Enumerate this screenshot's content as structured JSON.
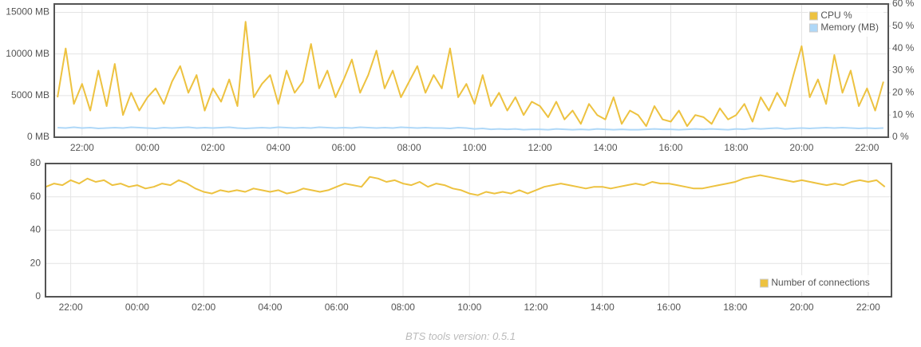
{
  "chart_data": [
    {
      "type": "line",
      "x": [
        21.25,
        21.5,
        21.75,
        22,
        22.25,
        22.5,
        22.75,
        23,
        23.25,
        23.5,
        23.75,
        24,
        24.25,
        24.5,
        24.75,
        25,
        25.25,
        25.5,
        25.75,
        26,
        26.25,
        26.5,
        26.75,
        27,
        27.25,
        27.5,
        27.75,
        28,
        28.25,
        28.5,
        28.75,
        29,
        29.25,
        29.5,
        29.75,
        30,
        30.25,
        30.5,
        30.75,
        31,
        31.25,
        31.5,
        31.75,
        32,
        32.25,
        32.5,
        32.75,
        33,
        33.25,
        33.5,
        33.75,
        34,
        34.25,
        34.5,
        34.75,
        35,
        35.25,
        35.5,
        35.75,
        36,
        36.25,
        36.5,
        36.75,
        37,
        37.25,
        37.5,
        37.75,
        38,
        38.25,
        38.5,
        38.75,
        39,
        39.25,
        39.5,
        39.75,
        40,
        40.25,
        40.5,
        40.75,
        41,
        41.25,
        41.5,
        41.75,
        42,
        42.25,
        42.5,
        42.75,
        43,
        43.25,
        43.5,
        43.75,
        44,
        44.25,
        44.5,
        44.75,
        45,
        45.25,
        45.5,
        45.75,
        46,
        46.25,
        46.5
      ],
      "xlim": [
        21.15,
        46.65
      ],
      "xticks": [
        {
          "value": 22,
          "label": "22:00"
        },
        {
          "value": 24,
          "label": "00:00"
        },
        {
          "value": 26,
          "label": "02:00"
        },
        {
          "value": 28,
          "label": "04:00"
        },
        {
          "value": 30,
          "label": "06:00"
        },
        {
          "value": 32,
          "label": "08:00"
        },
        {
          "value": 34,
          "label": "10:00"
        },
        {
          "value": 36,
          "label": "12:00"
        },
        {
          "value": 38,
          "label": "14:00"
        },
        {
          "value": 40,
          "label": "16:00"
        },
        {
          "value": 42,
          "label": "18:00"
        },
        {
          "value": 44,
          "label": "20:00"
        },
        {
          "value": 46,
          "label": "22:00"
        }
      ],
      "ylim": [
        0,
        16000
      ],
      "yticks": [
        {
          "value": 0,
          "label": "0 MB"
        },
        {
          "value": 5000,
          "label": "5000 MB"
        },
        {
          "value": 10000,
          "label": "10000 MB"
        },
        {
          "value": 15000,
          "label": "15000 MB"
        }
      ],
      "y2lim": [
        0,
        60
      ],
      "y2ticks": [
        {
          "value": 0,
          "label": "0 %"
        },
        {
          "value": 10,
          "label": "10 %"
        },
        {
          "value": 20,
          "label": "20 %"
        },
        {
          "value": 30,
          "label": "30 %"
        },
        {
          "value": 40,
          "label": "40 %"
        },
        {
          "value": 50,
          "label": "50 %"
        },
        {
          "value": 60,
          "label": "60 %"
        }
      ],
      "grid": true,
      "legend": "ne",
      "series": [
        {
          "name": "CPU %",
          "color": "#edc240",
          "axis": "y2",
          "values": [
            18,
            40,
            15,
            24,
            12,
            30,
            14,
            33,
            10,
            20,
            12,
            18,
            22,
            15,
            25,
            32,
            20,
            28,
            12,
            22,
            16,
            26,
            14,
            52,
            18,
            24,
            28,
            15,
            30,
            20,
            25,
            42,
            22,
            30,
            18,
            26,
            35,
            20,
            28,
            39,
            22,
            30,
            18,
            25,
            32,
            20,
            28,
            22,
            40,
            18,
            24,
            15,
            28,
            14,
            20,
            12,
            18,
            10,
            16,
            14,
            9,
            16,
            8,
            12,
            6,
            15,
            10,
            8,
            18,
            6,
            12,
            10,
            5,
            14,
            8,
            7,
            12,
            5,
            10,
            9,
            6,
            13,
            8,
            10,
            15,
            7,
            18,
            12,
            20,
            14,
            28,
            41,
            18,
            26,
            15,
            37,
            20,
            30,
            14,
            22,
            12,
            25
          ]
        },
        {
          "name": "Memory (MB)",
          "color": "#afd8f8",
          "values": [
            1150,
            1100,
            1200,
            1100,
            1150,
            1050,
            1100,
            1150,
            1100,
            1200,
            1150,
            1100,
            1050,
            1150,
            1100,
            1150,
            1200,
            1100,
            1150,
            1100,
            1150,
            1200,
            1100,
            1050,
            1100,
            1150,
            1100,
            1200,
            1150,
            1100,
            1150,
            1100,
            1200,
            1150,
            1100,
            1150,
            1100,
            1200,
            1150,
            1100,
            1150,
            1100,
            1200,
            1150,
            1100,
            1150,
            1100,
            1100,
            1050,
            1150,
            1100,
            1000,
            1050,
            950,
            1000,
            950,
            1000,
            900,
            950,
            950,
            900,
            1000,
            950,
            900,
            950,
            900,
            1000,
            950,
            900,
            950,
            900,
            900,
            950,
            1000,
            950,
            950,
            900,
            950,
            1000,
            950,
            1000,
            950,
            900,
            1000,
            950,
            1050,
            1000,
            1050,
            1100,
            1000,
            1050,
            1100,
            1050,
            1100,
            1150,
            1100,
            1150,
            1100,
            1050,
            1100,
            1050,
            1100
          ]
        }
      ]
    },
    {
      "type": "line",
      "x": [
        21.25,
        21.5,
        21.75,
        22,
        22.25,
        22.5,
        22.75,
        23,
        23.25,
        23.5,
        23.75,
        24,
        24.25,
        24.5,
        24.75,
        25,
        25.25,
        25.5,
        25.75,
        26,
        26.25,
        26.5,
        26.75,
        27,
        27.25,
        27.5,
        27.75,
        28,
        28.25,
        28.5,
        28.75,
        29,
        29.25,
        29.5,
        29.75,
        30,
        30.25,
        30.5,
        30.75,
        31,
        31.25,
        31.5,
        31.75,
        32,
        32.25,
        32.5,
        32.75,
        33,
        33.25,
        33.5,
        33.75,
        34,
        34.25,
        34.5,
        34.75,
        35,
        35.25,
        35.5,
        35.75,
        36,
        36.25,
        36.5,
        36.75,
        37,
        37.25,
        37.5,
        37.75,
        38,
        38.25,
        38.5,
        38.75,
        39,
        39.25,
        39.5,
        39.75,
        40,
        40.25,
        40.5,
        40.75,
        41,
        41.25,
        41.5,
        41.75,
        42,
        42.25,
        42.5,
        42.75,
        43,
        43.25,
        43.5,
        43.75,
        44,
        44.25,
        44.5,
        44.75,
        45,
        45.25,
        45.5,
        45.75,
        46,
        46.25,
        46.5
      ],
      "xlim": [
        21.24,
        46.7
      ],
      "xticks": [
        {
          "value": 22,
          "label": "22:00"
        },
        {
          "value": 24,
          "label": "00:00"
        },
        {
          "value": 26,
          "label": "02:00"
        },
        {
          "value": 28,
          "label": "04:00"
        },
        {
          "value": 30,
          "label": "06:00"
        },
        {
          "value": 32,
          "label": "08:00"
        },
        {
          "value": 34,
          "label": "10:00"
        },
        {
          "value": 36,
          "label": "12:00"
        },
        {
          "value": 38,
          "label": "14:00"
        },
        {
          "value": 40,
          "label": "16:00"
        },
        {
          "value": 42,
          "label": "18:00"
        },
        {
          "value": 44,
          "label": "20:00"
        },
        {
          "value": 46,
          "label": "22:00"
        }
      ],
      "ylim": [
        0,
        80
      ],
      "yticks": [
        0,
        20,
        40,
        60,
        80
      ],
      "grid": true,
      "legend": "se",
      "series": [
        {
          "name": "Number of connections",
          "color": "#edc240",
          "values": [
            66,
            68,
            67,
            70,
            68,
            71,
            69,
            70,
            67,
            68,
            66,
            67,
            65,
            66,
            68,
            67,
            70,
            68,
            65,
            63,
            62,
            64,
            63,
            64,
            63,
            65,
            64,
            63,
            64,
            62,
            63,
            65,
            64,
            63,
            64,
            66,
            68,
            67,
            66,
            72,
            71,
            69,
            70,
            68,
            67,
            69,
            66,
            68,
            67,
            65,
            64,
            62,
            61,
            63,
            62,
            63,
            62,
            64,
            62,
            64,
            66,
            67,
            68,
            67,
            66,
            65,
            66,
            66,
            65,
            66,
            67,
            68,
            67,
            69,
            68,
            68,
            67,
            66,
            65,
            65,
            66,
            67,
            68,
            69,
            71,
            72,
            73,
            72,
            71,
            70,
            69,
            70,
            69,
            68,
            67,
            68,
            67,
            69,
            70,
            69,
            70,
            66
          ]
        }
      ]
    }
  ],
  "footer": "BTS tools version: 0.5.1"
}
